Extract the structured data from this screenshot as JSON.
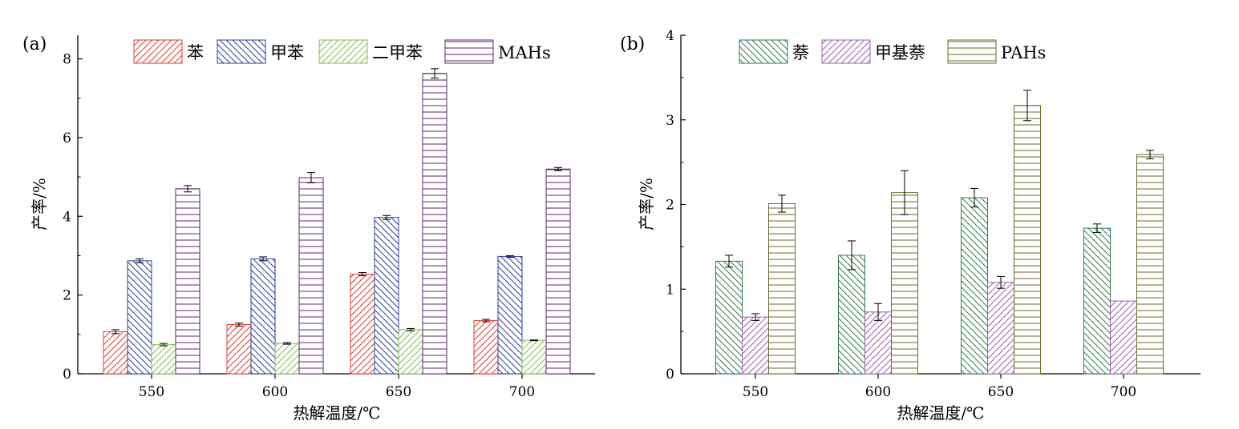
{
  "chart_data": [
    {
      "type": "bar",
      "panel_label": "(a)",
      "xlabel": "热解温度/℃",
      "ylabel": "产率/%",
      "categories": [
        "550",
        "600",
        "650",
        "700"
      ],
      "ylim": [
        0,
        8.6
      ],
      "yticks": [
        0,
        2,
        4,
        6,
        8
      ],
      "legend_position": "top",
      "series": [
        {
          "name": "苯",
          "values": [
            1.07,
            1.25,
            2.53,
            1.35
          ],
          "errors": [
            0.05,
            0.04,
            0.04,
            0.03
          ],
          "color": "#e03c31",
          "pattern": "diag-up"
        },
        {
          "name": "甲苯",
          "values": [
            2.87,
            2.92,
            3.97,
            2.98
          ],
          "errors": [
            0.05,
            0.05,
            0.05,
            0.02
          ],
          "color": "#2e3f9e",
          "pattern": "diag-down"
        },
        {
          "name": "二甲苯",
          "values": [
            0.74,
            0.77,
            1.12,
            0.85
          ],
          "errors": [
            0.03,
            0.02,
            0.03,
            0.01
          ],
          "color": "#7fbf4d",
          "pattern": "diag-up"
        },
        {
          "name": "MAHs",
          "values": [
            4.7,
            4.98,
            7.63,
            5.2
          ],
          "errors": [
            0.08,
            0.13,
            0.12,
            0.04
          ],
          "color": "#5b2a6b",
          "pattern": "horizontal"
        }
      ]
    },
    {
      "type": "bar",
      "panel_label": "(b)",
      "xlabel": "热解温度/℃",
      "ylabel": "产率/%",
      "categories": [
        "550",
        "600",
        "650",
        "700"
      ],
      "ylim": [
        0,
        4
      ],
      "yticks": [
        0,
        1,
        2,
        3,
        4
      ],
      "legend_position": "top",
      "series": [
        {
          "name": "萘",
          "values": [
            1.33,
            1.4,
            2.08,
            1.72
          ],
          "errors": [
            0.07,
            0.17,
            0.11,
            0.05
          ],
          "color": "#2f7d4f",
          "pattern": "diag-down"
        },
        {
          "name": "甲基萘",
          "values": [
            0.67,
            0.73,
            1.08,
            0.86
          ],
          "errors": [
            0.04,
            0.1,
            0.07,
            0.0
          ],
          "color": "#a05cb0",
          "pattern": "diag-up"
        },
        {
          "name": "PAHs",
          "values": [
            2.01,
            2.14,
            3.17,
            2.59
          ],
          "errors": [
            0.1,
            0.26,
            0.18,
            0.05
          ],
          "color": "#6b6b2a",
          "pattern": "horizontal"
        }
      ]
    }
  ]
}
